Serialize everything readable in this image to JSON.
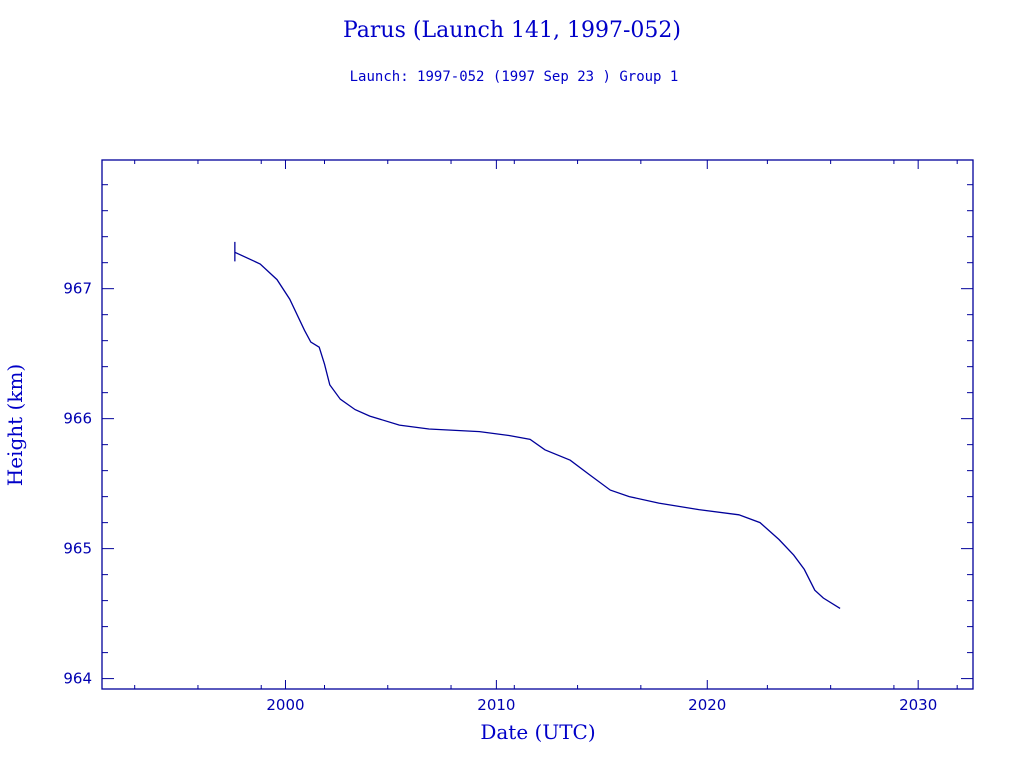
{
  "chart_data": {
    "type": "line",
    "title": "Parus (Launch 141, 1997-052)",
    "subtitle": "Launch: 1997-052  (1997 Sep 23 )  Group 1",
    "xlabel": "Date (UTC)",
    "ylabel": "Height (km)",
    "xlim": [
      1991.3,
      2032.6
    ],
    "ylim": [
      963.92,
      967.99
    ],
    "xticks": [
      2000,
      2010,
      2020,
      2030
    ],
    "yticks": [
      964,
      965,
      966,
      967
    ],
    "xtick_labels": [
      "2000",
      "2010",
      "2020",
      "2030"
    ],
    "ytick_labels": [
      "964",
      "965",
      "966",
      "967"
    ],
    "grid": false,
    "color": "#00009a",
    "launch_marker": {
      "x": 1997.6,
      "y_range": [
        967.21,
        967.36
      ]
    },
    "series": [
      {
        "name": "Height",
        "x": [
          1997.6,
          1998.8,
          1999.6,
          2000.2,
          2000.9,
          2001.2,
          2001.6,
          2001.85,
          2002.1,
          2002.6,
          2003.3,
          2004.0,
          2005.4,
          2006.8,
          2009.2,
          2010.6,
          2011.6,
          2012.3,
          2013.5,
          2014.4,
          2015.4,
          2016.3,
          2017.7,
          2019.6,
          2021.5,
          2022.5,
          2023.4,
          2024.1,
          2024.6,
          2025.1,
          2025.5,
          2026.3
        ],
        "y": [
          967.28,
          967.19,
          967.07,
          966.92,
          966.68,
          966.59,
          966.55,
          966.42,
          966.26,
          966.15,
          966.07,
          966.02,
          965.95,
          965.92,
          965.9,
          965.87,
          965.84,
          965.76,
          965.68,
          965.57,
          965.45,
          965.4,
          965.35,
          965.3,
          965.26,
          965.2,
          965.07,
          964.95,
          964.84,
          964.68,
          964.62,
          964.54
        ]
      }
    ]
  }
}
